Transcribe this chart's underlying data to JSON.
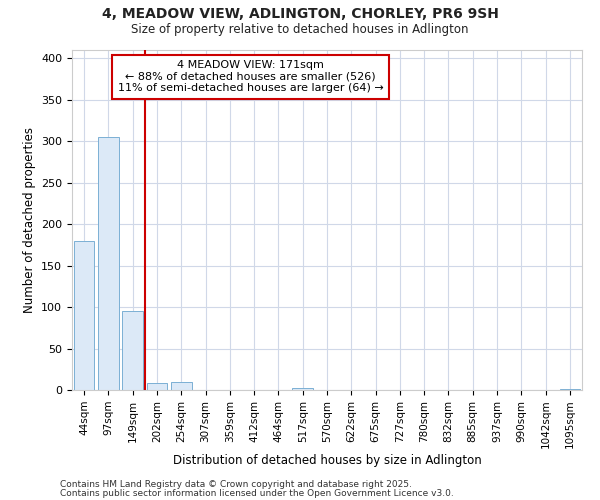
{
  "title": "4, MEADOW VIEW, ADLINGTON, CHORLEY, PR6 9SH",
  "subtitle": "Size of property relative to detached houses in Adlington",
  "xlabel": "Distribution of detached houses by size in Adlington",
  "ylabel": "Number of detached properties",
  "bar_color": "#dce9f7",
  "bar_edge_color": "#7bafd4",
  "categories": [
    "44sqm",
    "97sqm",
    "149sqm",
    "202sqm",
    "254sqm",
    "307sqm",
    "359sqm",
    "412sqm",
    "464sqm",
    "517sqm",
    "570sqm",
    "622sqm",
    "675sqm",
    "727sqm",
    "780sqm",
    "832sqm",
    "885sqm",
    "937sqm",
    "990sqm",
    "1042sqm",
    "1095sqm"
  ],
  "values": [
    180,
    305,
    95,
    8,
    10,
    0,
    0,
    0,
    0,
    2,
    0,
    0,
    0,
    0,
    0,
    0,
    0,
    0,
    0,
    0,
    1
  ],
  "ylim": [
    0,
    410
  ],
  "yticks": [
    0,
    50,
    100,
    150,
    200,
    250,
    300,
    350,
    400
  ],
  "vline_x": 2.5,
  "vline_color": "#cc0000",
  "annotation_line1": "4 MEADOW VIEW: 171sqm",
  "annotation_line2": "← 88% of detached houses are smaller (526)",
  "annotation_line3": "11% of semi-detached houses are larger (64) →",
  "annotation_box_color": "#ffffff",
  "annotation_box_edge_color": "#cc0000",
  "footer1": "Contains HM Land Registry data © Crown copyright and database right 2025.",
  "footer2": "Contains public sector information licensed under the Open Government Licence v3.0.",
  "fig_bg_color": "#ffffff",
  "plot_bg_color": "#ffffff",
  "grid_color": "#d0d8e8"
}
